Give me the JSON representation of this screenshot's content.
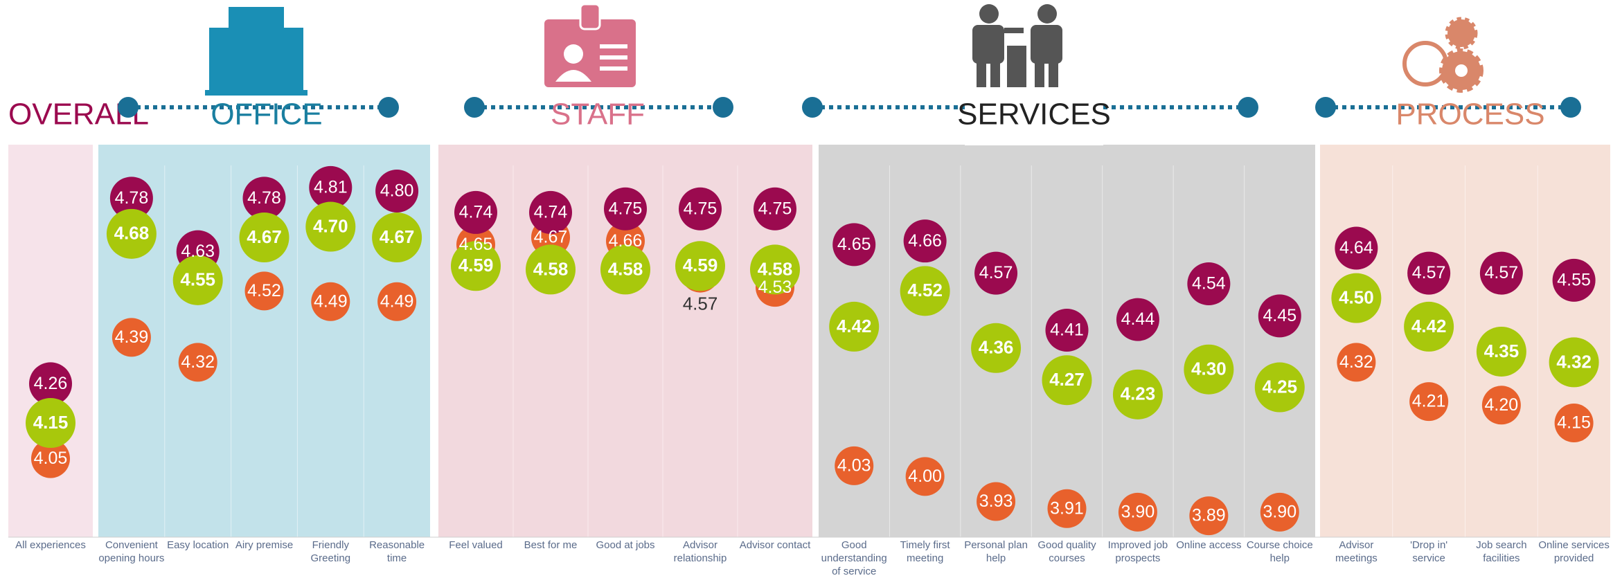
{
  "chart_data": {
    "type": "dot",
    "sections": [
      {
        "title": "OVERALL",
        "color": "#9b0a4f",
        "background": "#f6e3ea",
        "categories": [
          "All experiences"
        ]
      },
      {
        "title": "OFFICE",
        "color": "#1a7fa0",
        "background": "#c2e2ea",
        "categories": [
          "Convenient opening hours",
          "Easy location",
          "Airy premise",
          "Friendly Greeting",
          "Reasonable time"
        ]
      },
      {
        "title": "STAFF",
        "color": "#d9718a",
        "background": "#f2d9de",
        "categories": [
          "Feel valued",
          "Best for me",
          "Good at jobs",
          "Advisor relationship",
          "Advisor contact"
        ]
      },
      {
        "title": "SERVICES",
        "color": "#222222",
        "background": "#d4d4d4",
        "categories": [
          "Good understanding of service",
          "Timely first meeting",
          "Personal plan help",
          "Good quality courses",
          "Improved job prospects",
          "Online access",
          "Course choice help"
        ]
      },
      {
        "title": "PROCESS",
        "color": "#d9876a",
        "background": "#f6e1d8",
        "categories": [
          "Advisor meetings",
          "'Drop in' service",
          "Job search facilities",
          "Online services provided"
        ]
      }
    ],
    "series": [
      {
        "color": "#e8612c",
        "values": [
          4.05,
          4.39,
          4.32,
          4.52,
          4.49,
          4.49,
          4.65,
          4.67,
          4.66,
          4.57,
          4.53,
          4.03,
          4.0,
          3.93,
          3.91,
          3.9,
          3.89,
          3.9,
          4.32,
          4.21,
          4.2,
          4.15
        ],
        "value_labels": [
          "4.05",
          "4.39",
          "4.32",
          "4.52",
          "4.49",
          "4.49",
          "4.65",
          "4.67",
          "4.66",
          "4.57",
          "4.53",
          "4.03",
          "4.00",
          "3.93",
          "3.91",
          "3.90",
          "3.89",
          "3.90",
          "4.32",
          "4.21",
          "4.20",
          "4.15"
        ]
      },
      {
        "color": "#9b0a4f",
        "values": [
          4.26,
          4.78,
          4.63,
          4.78,
          4.81,
          4.8,
          4.74,
          4.74,
          4.75,
          4.75,
          4.75,
          4.65,
          4.66,
          4.57,
          4.41,
          4.44,
          4.54,
          4.45,
          4.64,
          4.57,
          4.57,
          4.55
        ],
        "value_labels": [
          "4.26",
          "4.78",
          "4.63",
          "4.78",
          "4.81",
          "4.80",
          "4.74",
          "4.74",
          "4.75",
          "4.75",
          "4.75",
          "4.65",
          "4.66",
          "4.57",
          "4.41",
          "4.44",
          "4.54",
          "4.45",
          "4.64",
          "4.57",
          "4.57",
          "4.55"
        ]
      },
      {
        "color": "#a8c80c",
        "values": [
          4.15,
          4.68,
          4.55,
          4.67,
          4.7,
          4.67,
          4.59,
          4.58,
          4.58,
          4.59,
          4.58,
          4.42,
          4.52,
          4.36,
          4.27,
          4.23,
          4.3,
          4.25,
          4.5,
          4.42,
          4.35,
          4.32
        ],
        "value_labels": [
          "4.15",
          "4.68",
          "4.55",
          "4.67",
          "4.70",
          "4.67",
          "4.59",
          "4.58",
          "4.58",
          "4.59",
          "4.58",
          "4.42",
          "4.52",
          "4.36",
          "4.27",
          "4.23",
          "4.30",
          "4.25",
          "4.50",
          "4.42",
          "4.35",
          "4.32"
        ]
      }
    ],
    "ylim": [
      3.83,
      4.93
    ]
  }
}
